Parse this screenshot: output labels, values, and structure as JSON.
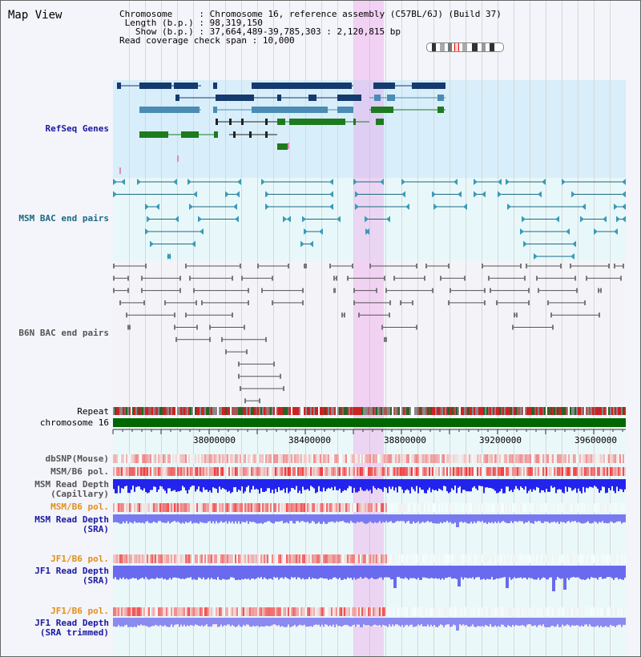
{
  "view": {
    "title": "Map View"
  },
  "info": {
    "chromosome_label": "Chromosome",
    "chromosome_value": "Chromosome 16, reference assembly (C57BL/6J) (Build 37)",
    "length_label": "Length (b.p.)",
    "length_value": "98,319,150",
    "show_label": "Show (b.p.)",
    "show_value": "37,664,489-39,785,303 : 2,120,815 bp",
    "span_label": "Read coverage check span",
    "span_value": "10,000"
  },
  "tracks": {
    "refseq": "RefSeq Genes",
    "msm_bac": "MSM BAC end pairs",
    "b6n_bac": "B6N BAC end pairs",
    "repeat": "Repeat",
    "chromosome": "chromosome 16",
    "dbsnp": "dbSNP(Mouse)",
    "msm_pol_1": "MSM/B6 pol.",
    "msm_depth_cap_1": "MSM Read Depth",
    "msm_depth_cap_2": "(Capillary)",
    "msm_pol_2": "MSM/B6 pol.",
    "msm_depth_sra_1": "MSM Read Depth",
    "msm_depth_sra_2": "(SRA)",
    "jf1_pol_1": "JF1/B6 pol.",
    "jf1_depth_sra_1": "JF1 Read Depth",
    "jf1_depth_sra_2": "(SRA)",
    "jf1_pol_2": "JF1/B6 pol.",
    "jf1_depth_trim_1": "JF1 Read Depth",
    "jf1_depth_trim_2": "(SRA trimmed)"
  },
  "axis": {
    "ticks": [
      "38000000",
      "38400000",
      "38800000",
      "39200000",
      "39600000"
    ]
  },
  "colors": {
    "label_blue": "#1a1aa0",
    "label_teal": "#1a6a80",
    "label_gray": "#555555",
    "label_orange": "#e0901a",
    "gene_dark": "#143a6e",
    "gene_light": "#4a8cb4",
    "gene_green": "#1e7a1e",
    "refseq_bg": "#d8eefa",
    "msm_bg": "#e8f8fa",
    "b6n_bg": "#f4f4f8",
    "highlight": "#f08ce6",
    "chrom_bar": "#006600"
  }
}
